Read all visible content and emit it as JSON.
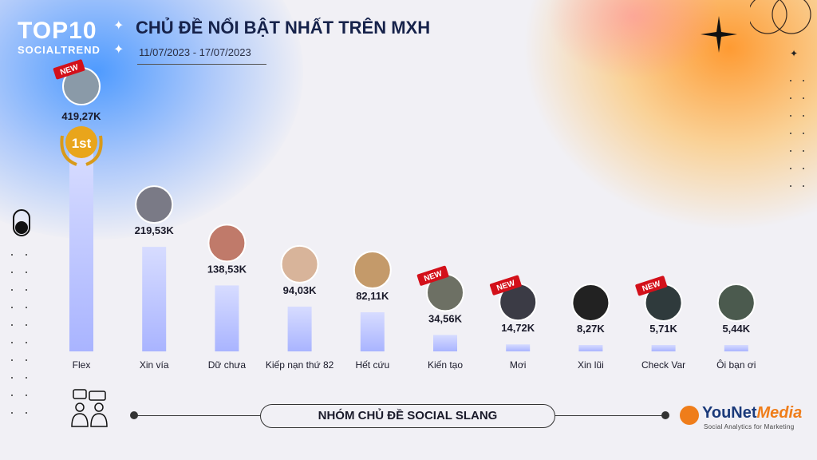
{
  "header": {
    "logo_main": "TOP10",
    "logo_sub": "SOCIALTREND",
    "title": "CHỦ ĐỀ NỔI BẬT NHẤT TRÊN MXH",
    "date_range": "11/07/2023 - 17/07/2023"
  },
  "footer": {
    "group_label": "NHÓM CHỦ ĐỀ SOCIAL SLANG",
    "brand_name_a": "YouNet",
    "brand_name_b": "Media",
    "brand_tagline": "Social Analytics for Marketing"
  },
  "badges": {
    "new_label": "NEW",
    "rank_label": "1st"
  },
  "colors": {
    "bar_top": "#a9b4ff",
    "bar_bottom": "#d7dcff",
    "title": "#16224a",
    "new_badge": "#d3101a",
    "gold": "#e9a51b"
  },
  "chart_data": {
    "type": "bar",
    "title": "CHỦ ĐỀ NỔI BẬT NHẤT TRÊN MXH",
    "xlabel": "",
    "ylabel": "",
    "unit": "K",
    "ylim": [
      0,
      419.27
    ],
    "grid": false,
    "categories": [
      "Flex",
      "Xin vía",
      "Dữ chưa",
      "Kiếp nạn thứ 82",
      "Hết cứu",
      "Kiến tạo",
      "Mơi",
      "Xin lũi",
      "Check Var",
      "Ôi bạn ơi"
    ],
    "values": [
      419.27,
      219.53,
      138.53,
      94.03,
      82.11,
      34.56,
      14.72,
      8.27,
      5.71,
      5.44
    ],
    "value_labels": [
      "419,27K",
      "219,53K",
      "138,53K",
      "94,03K",
      "82,11K",
      "34,56K",
      "14,72K",
      "8,27K",
      "5,71K",
      "5,44K"
    ],
    "is_new": [
      true,
      false,
      false,
      false,
      false,
      true,
      true,
      false,
      true,
      false
    ]
  }
}
